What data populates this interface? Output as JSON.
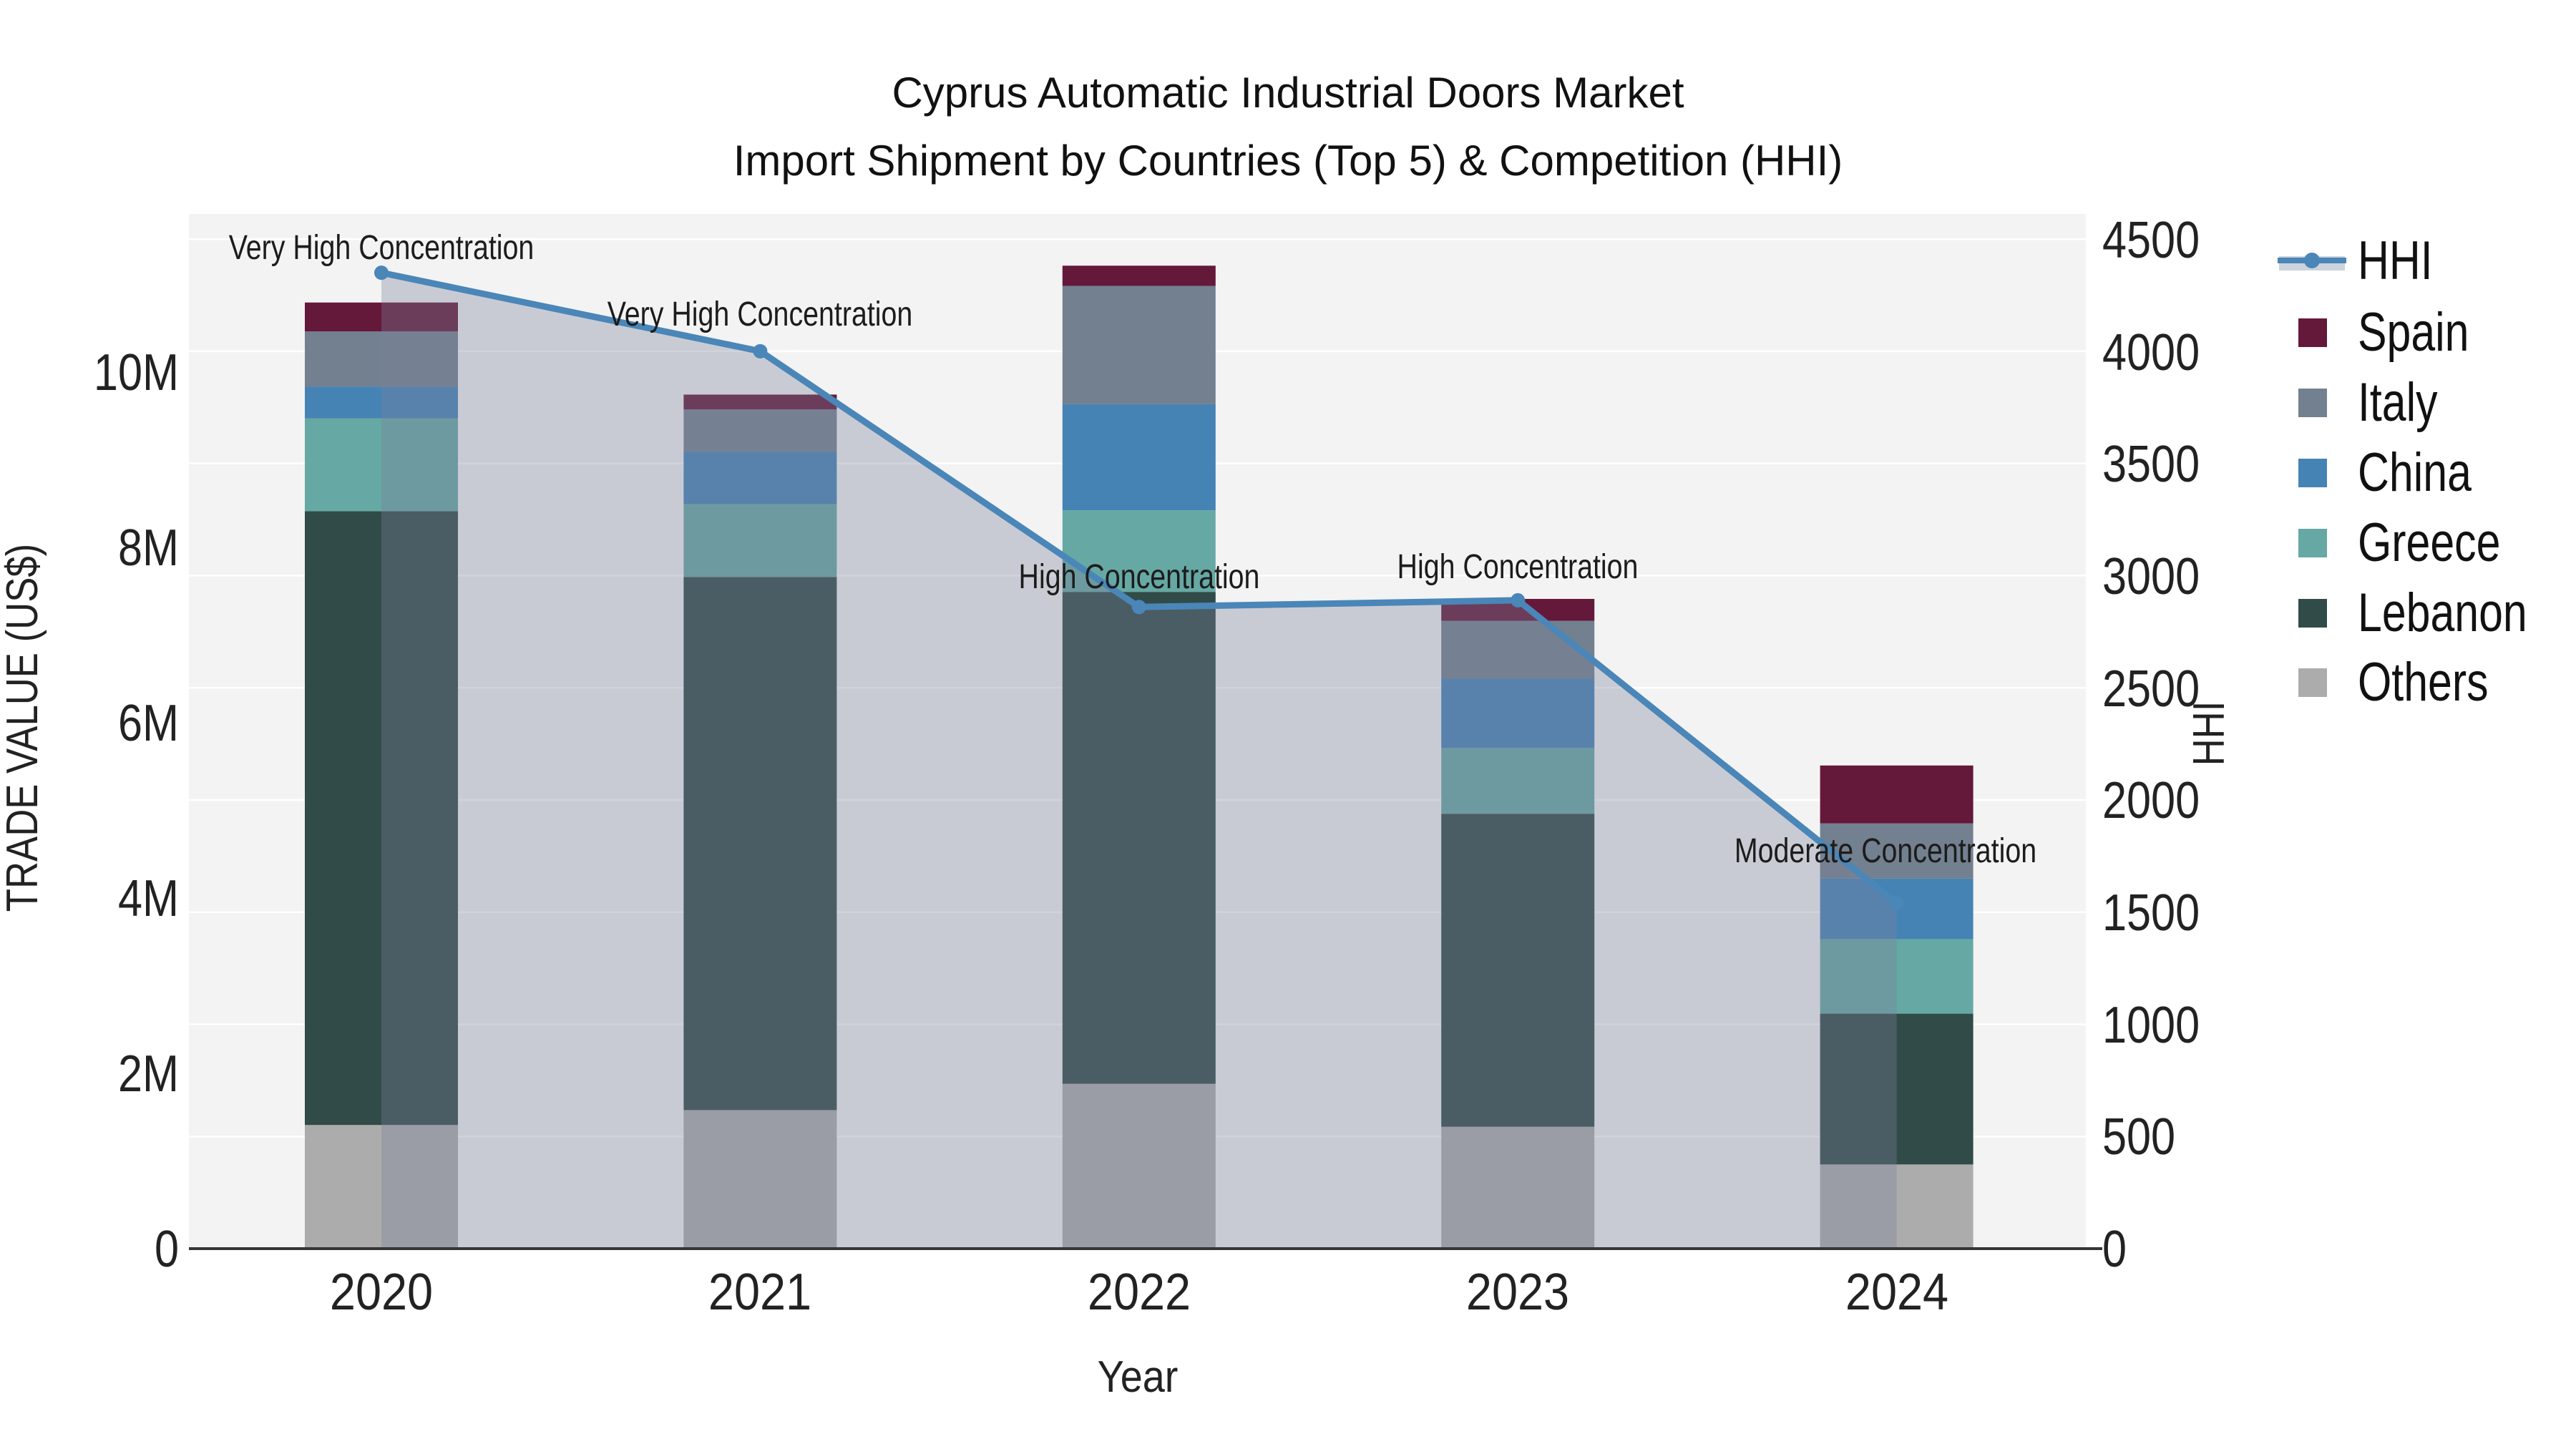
{
  "title": {
    "line1": "Cyprus Automatic Industrial Doors Market",
    "line2": "Import Shipment by Countries (Top 5) & Competition (HHI)"
  },
  "axes": {
    "x": {
      "title": "Year",
      "ticks": [
        "2020",
        "2021",
        "2022",
        "2023",
        "2024"
      ]
    },
    "y_left": {
      "title": "TRADE VALUE (US$)",
      "ticks": [
        "0",
        "2M",
        "4M",
        "6M",
        "8M",
        "10M"
      ]
    },
    "y_right": {
      "title": "HHI",
      "ticks": [
        "0",
        "500",
        "1000",
        "1500",
        "2000",
        "2500",
        "3000",
        "3500",
        "4000",
        "4500"
      ]
    }
  },
  "legend": {
    "items": [
      {
        "label": "HHI",
        "type": "line"
      },
      {
        "label": "Spain",
        "type": "swatch"
      },
      {
        "label": "Italy",
        "type": "swatch"
      },
      {
        "label": "China",
        "type": "swatch"
      },
      {
        "label": "Greece",
        "type": "swatch"
      },
      {
        "label": "Lebanon",
        "type": "swatch"
      },
      {
        "label": "Others",
        "type": "swatch"
      }
    ]
  },
  "chart_data": {
    "type": "bar+line",
    "title": "Cyprus Automatic Industrial Doors Market — Import Shipment by Countries (Top 5) & Competition (HHI)",
    "categories": [
      "2020",
      "2021",
      "2022",
      "2023",
      "2024"
    ],
    "xlabel": "Year",
    "ylabel_left": "TRADE VALUE (US$)",
    "ylabel_right": "HHI",
    "ylim_left": [
      0,
      11800000
    ],
    "ylim_right": [
      0,
      4612
    ],
    "grid": "horizontal-right-axis-500-steps",
    "legend_position": "right",
    "bar_mode": "stacked",
    "bar_series": [
      {
        "name": "Spain",
        "values": [
          330000,
          170000,
          230000,
          250000,
          660000
        ]
      },
      {
        "name": "Italy",
        "values": [
          630000,
          480000,
          1350000,
          660000,
          630000
        ]
      },
      {
        "name": "China",
        "values": [
          360000,
          600000,
          1210000,
          790000,
          690000
        ]
      },
      {
        "name": "Greece",
        "values": [
          1060000,
          830000,
          930000,
          750000,
          850000
        ]
      },
      {
        "name": "Lebanon",
        "values": [
          7000000,
          6080000,
          5610000,
          3570000,
          1720000
        ]
      },
      {
        "name": "Others",
        "values": [
          1410000,
          1580000,
          1880000,
          1390000,
          960000
        ]
      }
    ],
    "bar_totals": [
      10790000,
      9740000,
      11210000,
      7410000,
      5510000
    ],
    "line_series": {
      "name": "HHI",
      "values": [
        4350,
        4000,
        2860,
        2890,
        1540
      ],
      "axis": "right",
      "area_fill": true
    },
    "annotations": [
      {
        "x": "2020",
        "text": "Very High Concentration"
      },
      {
        "x": "2021",
        "text": "Very High Concentration"
      },
      {
        "x": "2022",
        "text": "High Concentration"
      },
      {
        "x": "2023",
        "text": "High Concentration"
      },
      {
        "x": "2024",
        "text": "Moderate Concentration"
      }
    ],
    "unit": "US$",
    "colors": {
      "Spain": "#64183A",
      "Italy": "#72808F",
      "China": "#4583B5",
      "Greece": "#66A8A4",
      "Lebanon": "#304B48",
      "Others": "#ACACAC",
      "hhi_line": "#4A86B8",
      "hhi_fill": "rgba(122,129,156,0.35)",
      "hhi_fill_legend": "#CDD3DC",
      "plot_background": "#F3F3F3",
      "gridline": "#FFFFFF",
      "axis_line": "#363636"
    }
  }
}
